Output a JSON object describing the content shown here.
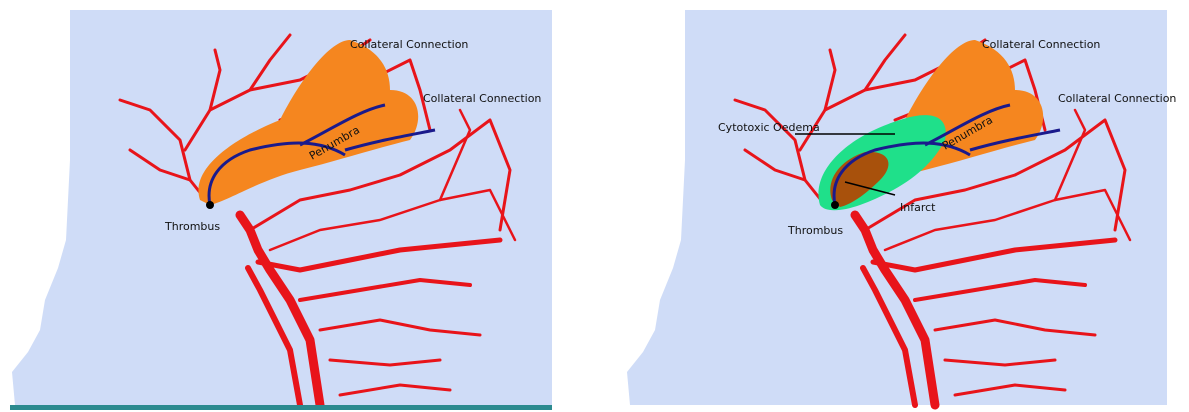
{
  "panels": [
    {
      "labels": {
        "collateral_top": "Collateral Connection",
        "collateral_right": "Collateral Connection",
        "penumbra": "Penumbra",
        "thrombus": "Thrombus"
      }
    },
    {
      "labels": {
        "collateral_top": "Collateral Connection",
        "collateral_right": "Collateral Connection",
        "oedema": "Cytotoxic Oedema",
        "penumbra": "Penumbra",
        "infarct": "Infarct",
        "thrombus": "Thrombus"
      }
    }
  ]
}
